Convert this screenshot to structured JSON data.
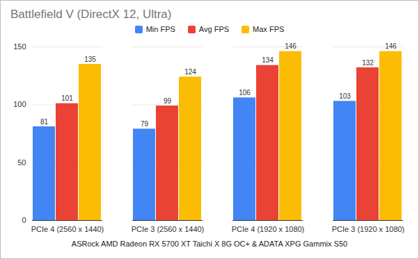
{
  "chart_data": {
    "type": "bar",
    "title": "Battlefield V (DirectX 12, Ultra)",
    "x_label": "ASRock AMD Radeon RX 5700 XT Taichi X 8G OC+ & ADATA XPG Gammix S50",
    "categories": [
      "PCIe 4 (2560 x 1440)",
      "PCIe 3 (2560 x 1440)",
      "PCIe 4 (1920 x 1080)",
      "PCIe 3 (1920 x 1080)"
    ],
    "series": [
      {
        "name": "Min FPS",
        "color": "#4285f4",
        "values": [
          81,
          79,
          106,
          103
        ]
      },
      {
        "name": "Avg FPS",
        "color": "#ea4335",
        "values": [
          101,
          99,
          134,
          132
        ]
      },
      {
        "name": "Max FPS",
        "color": "#fbbc04",
        "values": [
          135,
          124,
          146,
          146
        ]
      }
    ],
    "ylim": [
      0,
      150
    ],
    "yticks": [
      0,
      50,
      100,
      150
    ],
    "grid": true,
    "legend": "top",
    "data_labels": true
  }
}
